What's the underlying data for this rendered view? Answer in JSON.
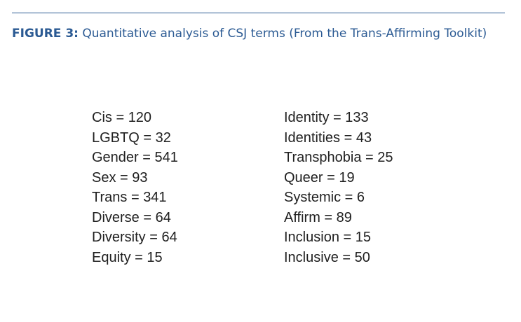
{
  "figure": {
    "label": "FIGURE 3:",
    "caption": "Quantitative analysis of CSJ terms (From the Trans-Affirming Toolkit)"
  },
  "terms_left": [
    {
      "term": "Cis",
      "count": 120
    },
    {
      "term": "LGBTQ",
      "count": 32
    },
    {
      "term": "Gender",
      "count": 541
    },
    {
      "term": "Sex",
      "count": 93
    },
    {
      "term": "Trans",
      "count": 341
    },
    {
      "term": "Diverse",
      "count": 64
    },
    {
      "term": "Diversity",
      "count": 64
    },
    {
      "term": "Equity",
      "count": 15
    }
  ],
  "terms_right": [
    {
      "term": "Identity",
      "count": 133
    },
    {
      "term": "Identities",
      "count": 43
    },
    {
      "term": "Transphobia",
      "count": 25
    },
    {
      "term": "Queer",
      "count": 19
    },
    {
      "term": "Systemic",
      "count": 6
    },
    {
      "term": "Affirm",
      "count": 89
    },
    {
      "term": "Inclusion",
      "count": 15
    },
    {
      "term": "Inclusive",
      "count": 50
    }
  ],
  "colors": {
    "caption": "#2b5a93",
    "rule": "#2b5a93",
    "body_text": "#202020"
  }
}
